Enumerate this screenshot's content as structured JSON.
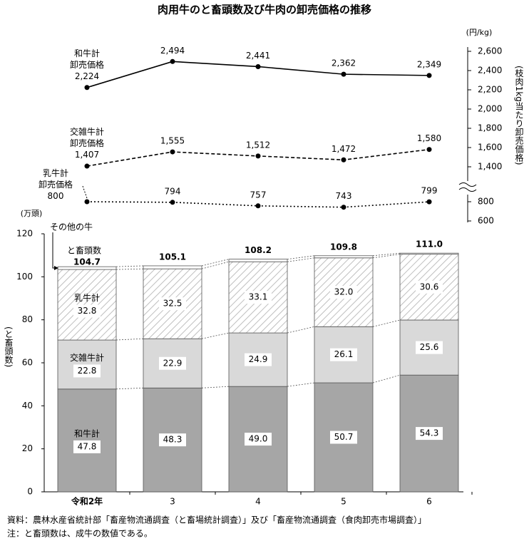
{
  "chart_data": [
    {
      "type": "line",
      "title": "肉用牛のと畜頭数及び牛肉の卸売価格の推移",
      "y_label": "(円/kg)",
      "y_axis_title": "(枝肉1kg当たり卸売価格)",
      "ylim": [
        600,
        2600
      ],
      "axis_break": [
        800,
        1400
      ],
      "yticks": [
        600,
        800,
        {
          "value": 1400,
          "label": "1,400"
        },
        {
          "value": 1600,
          "label": "1,600"
        },
        {
          "value": 1800,
          "label": "1,800"
        },
        {
          "value": 2000,
          "label": "2,000"
        },
        {
          "value": 2200,
          "label": "2,200"
        },
        {
          "value": 2400,
          "label": "2,400"
        },
        {
          "value": 2600,
          "label": "2,600"
        }
      ],
      "series": [
        {
          "name": "和牛計\n卸売価格",
          "color": "#000000",
          "dash": "none",
          "values": [
            2224,
            2494,
            2441,
            2362,
            2349
          ],
          "value_labels": [
            "2,224",
            "2,494",
            "2,441",
            "2,362",
            "2,349"
          ]
        },
        {
          "name": "交雑牛計\n卸売価格",
          "color": "#000000",
          "dash": "5,3",
          "values": [
            1407,
            1555,
            1512,
            1472,
            1580
          ],
          "value_labels": [
            "1,407",
            "1,555",
            "1,512",
            "1,472",
            "1,580"
          ]
        },
        {
          "name": "乳牛計\n卸売価格",
          "color": "#000000",
          "dash": "2,3",
          "values": [
            800,
            794,
            757,
            743,
            799
          ]
        }
      ]
    },
    {
      "type": "stacked_bar",
      "y_label": "(万頭)",
      "y_axis_title": "(と畜頭数)",
      "categories": [
        "令和2年",
        "3",
        "4",
        "5",
        "6"
      ],
      "ylim": [
        0,
        120
      ],
      "yticks": [
        0,
        20,
        40,
        60,
        80,
        100,
        120
      ],
      "series": [
        {
          "name": "和牛計",
          "color": "#a6a6a6",
          "values": [
            47.8,
            48.3,
            49.0,
            50.7,
            54.3
          ],
          "value_labels": [
            "47.8",
            "48.3",
            "49.0",
            "50.7",
            "54.3"
          ]
        },
        {
          "name": "交雑牛計",
          "color": "#d9d9d9",
          "values": [
            22.8,
            22.9,
            24.9,
            26.1,
            25.6
          ],
          "value_labels": [
            "22.8",
            "22.9",
            "24.9",
            "26.1",
            "25.6"
          ]
        },
        {
          "name": "乳牛計",
          "color": "hatch",
          "values": [
            32.8,
            32.5,
            33.1,
            32.0,
            30.6
          ],
          "value_labels": [
            "32.8",
            "32.5",
            "33.1",
            "32.0",
            "30.6"
          ]
        },
        {
          "name": "その他の牛",
          "color": "#ffffff",
          "values": [
            1.3,
            1.4,
            1.2,
            1.0,
            0.5
          ]
        }
      ],
      "totals": {
        "name": "と畜頭数",
        "values": [
          104.7,
          105.1,
          108.2,
          109.8,
          111.0
        ],
        "value_labels": [
          "104.7",
          "105.1",
          "108.2",
          "109.8",
          "111.0"
        ]
      }
    }
  ],
  "notes": [
    "資料：農林水産省統計部「畜産物流通調査（と畜場統計調査）」及び「畜産物流通調査（食肉卸売市場調査）」",
    "注：と畜頭数は、成牛の数値である。"
  ]
}
